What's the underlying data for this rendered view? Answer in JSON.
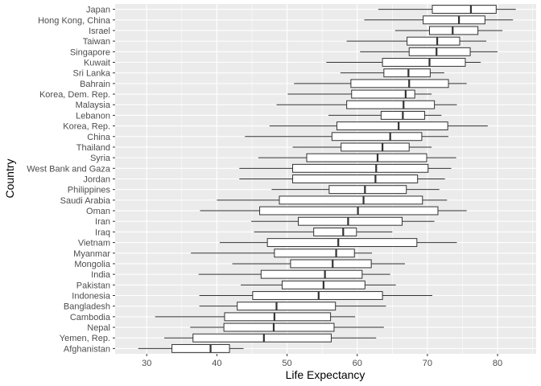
{
  "chart_data": {
    "type": "boxplot",
    "orientation": "horizontal",
    "title": "",
    "xlabel": "Life Expectancy",
    "ylabel": "Country",
    "xlim": [
      25.5,
      85.5
    ],
    "xticks": [
      30,
      40,
      50,
      60,
      70,
      80
    ],
    "grid": true,
    "colors": {
      "panel": "#ebebeb",
      "grid_major": "#ffffff",
      "box_fill": "#ffffff",
      "box_line": "#333333"
    },
    "series": [
      {
        "category": "Japan",
        "min": 63.0,
        "q1": 70.7,
        "median": 76.2,
        "q3": 79.8,
        "max": 82.6
      },
      {
        "category": "Hong Kong, China",
        "min": 61.0,
        "q1": 69.4,
        "median": 74.5,
        "q3": 78.2,
        "max": 82.2
      },
      {
        "category": "Israel",
        "min": 65.4,
        "q1": 70.3,
        "median": 73.6,
        "q3": 77.2,
        "max": 80.7
      },
      {
        "category": "Taiwan",
        "min": 58.5,
        "q1": 67.1,
        "median": 71.4,
        "q3": 74.6,
        "max": 78.4
      },
      {
        "category": "Singapore",
        "min": 60.4,
        "q1": 67.4,
        "median": 71.3,
        "q3": 76.1,
        "max": 80.0
      },
      {
        "category": "Kuwait",
        "min": 55.6,
        "q1": 63.6,
        "median": 70.3,
        "q3": 75.4,
        "max": 77.6
      },
      {
        "category": "Sri Lanka",
        "min": 57.6,
        "q1": 63.8,
        "median": 67.3,
        "q3": 70.4,
        "max": 72.4
      },
      {
        "category": "Bahrain",
        "min": 51.0,
        "q1": 59.1,
        "median": 67.4,
        "q3": 73.0,
        "max": 75.6
      },
      {
        "category": "Korea, Dem. Rep.",
        "min": 50.1,
        "q1": 59.2,
        "median": 66.9,
        "q3": 68.2,
        "max": 70.6
      },
      {
        "category": "Malaysia",
        "min": 48.5,
        "q1": 58.5,
        "median": 66.6,
        "q3": 71.0,
        "max": 74.2
      },
      {
        "category": "Lebanon",
        "min": 55.9,
        "q1": 63.4,
        "median": 66.5,
        "q3": 69.6,
        "max": 72.0
      },
      {
        "category": "Korea, Rep.",
        "min": 47.5,
        "q1": 57.1,
        "median": 65.9,
        "q3": 72.9,
        "max": 78.6
      },
      {
        "category": "China",
        "min": 44.0,
        "q1": 56.4,
        "median": 64.7,
        "q3": 69.2,
        "max": 73.0
      },
      {
        "category": "Thailand",
        "min": 50.8,
        "q1": 57.7,
        "median": 63.6,
        "q3": 67.4,
        "max": 70.6
      },
      {
        "category": "Syria",
        "min": 45.9,
        "q1": 52.8,
        "median": 62.9,
        "q3": 69.9,
        "max": 74.1
      },
      {
        "category": "West Bank and Gaza",
        "min": 43.2,
        "q1": 50.8,
        "median": 62.7,
        "q3": 70.1,
        "max": 73.4
      },
      {
        "category": "Jordan",
        "min": 43.2,
        "q1": 50.8,
        "median": 62.6,
        "q3": 68.6,
        "max": 72.5
      },
      {
        "category": "Philippines",
        "min": 47.8,
        "q1": 56.0,
        "median": 61.1,
        "q3": 67.0,
        "max": 71.7
      },
      {
        "category": "Saudi Arabia",
        "min": 40.0,
        "q1": 48.9,
        "median": 60.9,
        "q3": 69.3,
        "max": 72.8
      },
      {
        "category": "Oman",
        "min": 37.6,
        "q1": 46.1,
        "median": 60.1,
        "q3": 71.5,
        "max": 75.6
      },
      {
        "category": "Iran",
        "min": 44.9,
        "q1": 51.6,
        "median": 58.7,
        "q3": 66.4,
        "max": 71.0
      },
      {
        "category": "Iraq",
        "min": 45.3,
        "q1": 53.8,
        "median": 58.0,
        "q3": 59.9,
        "max": 65.0
      },
      {
        "category": "Vietnam",
        "min": 40.4,
        "q1": 47.2,
        "median": 57.3,
        "q3": 68.5,
        "max": 74.2
      },
      {
        "category": "Myanmar",
        "min": 36.3,
        "q1": 48.2,
        "median": 57.0,
        "q3": 59.6,
        "max": 62.1
      },
      {
        "category": "Mongolia",
        "min": 42.2,
        "q1": 50.5,
        "median": 56.5,
        "q3": 62.0,
        "max": 66.8
      },
      {
        "category": "India",
        "min": 37.4,
        "q1": 46.3,
        "median": 55.4,
        "q3": 60.7,
        "max": 64.7
      },
      {
        "category": "Pakistan",
        "min": 43.4,
        "q1": 49.3,
        "median": 55.2,
        "q3": 61.1,
        "max": 65.5
      },
      {
        "category": "Indonesia",
        "min": 37.5,
        "q1": 45.1,
        "median": 54.5,
        "q3": 63.6,
        "max": 70.7
      },
      {
        "category": "Bangladesh",
        "min": 37.5,
        "q1": 42.9,
        "median": 48.5,
        "q3": 56.9,
        "max": 64.1
      },
      {
        "category": "Cambodia",
        "min": 31.2,
        "q1": 41.1,
        "median": 48.2,
        "q3": 56.2,
        "max": 59.7
      },
      {
        "category": "Nepal",
        "min": 36.2,
        "q1": 41.0,
        "median": 48.1,
        "q3": 56.7,
        "max": 63.8
      },
      {
        "category": "Yemen, Rep.",
        "min": 32.5,
        "q1": 36.6,
        "median": 46.7,
        "q3": 56.3,
        "max": 62.7
      },
      {
        "category": "Afghanistan",
        "min": 28.8,
        "q1": 33.6,
        "median": 39.1,
        "q3": 41.8,
        "max": 43.8
      }
    ]
  }
}
